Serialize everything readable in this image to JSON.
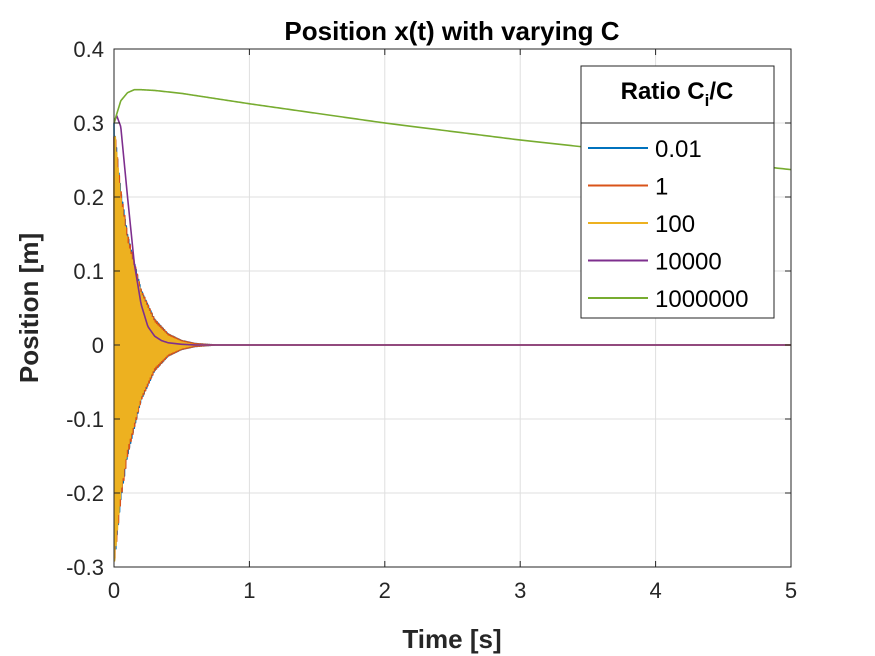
{
  "chart_data": {
    "type": "line",
    "title": "Position x(t) with varying C",
    "xlabel": "Time [s]",
    "ylabel": "Position [m]",
    "xlim": [
      0,
      5
    ],
    "ylim": [
      -0.3,
      0.4
    ],
    "x_ticks": [
      "0",
      "1",
      "2",
      "3",
      "4",
      "5"
    ],
    "y_ticks": [
      "-0.3",
      "-0.2",
      "-0.1",
      "0",
      "0.1",
      "0.2",
      "0.3",
      "0.4"
    ],
    "grid": true,
    "legend": {
      "title_main": "Ratio C",
      "title_sub": "i",
      "title_end": "/C",
      "placement": "top-right"
    },
    "series": [
      {
        "name": "0.01",
        "color": "#0072BD",
        "behavior": "fast oscillation decaying to 0 by ~0.4 s",
        "envelope": [
          [
            0,
            0.3
          ],
          [
            0.05,
            0.21
          ],
          [
            0.1,
            0.15
          ],
          [
            0.2,
            0.075
          ],
          [
            0.3,
            0.035
          ],
          [
            0.4,
            0.015
          ],
          [
            0.5,
            0.006
          ],
          [
            0.6,
            0.002
          ],
          [
            0.75,
            0
          ]
        ],
        "values_after": [
          [
            0.75,
            0
          ],
          [
            5,
            0
          ]
        ]
      },
      {
        "name": "1",
        "color": "#D95319",
        "behavior": "fast oscillation decaying to 0 by ~0.7 s",
        "envelope": [
          [
            0,
            0.3
          ],
          [
            0.05,
            0.21
          ],
          [
            0.1,
            0.15
          ],
          [
            0.2,
            0.075
          ],
          [
            0.3,
            0.035
          ],
          [
            0.4,
            0.015
          ],
          [
            0.5,
            0.006
          ],
          [
            0.6,
            0.002
          ],
          [
            0.75,
            0
          ]
        ],
        "values_after": [
          [
            0.75,
            0
          ],
          [
            5,
            0
          ]
        ]
      },
      {
        "name": "100",
        "color": "#EDB120",
        "behavior": "fast oscillation decaying to 0 by ~0.5 s",
        "envelope": [
          [
            0,
            0.3
          ],
          [
            0.05,
            0.2
          ],
          [
            0.1,
            0.14
          ],
          [
            0.2,
            0.07
          ],
          [
            0.3,
            0.03
          ],
          [
            0.4,
            0.012
          ],
          [
            0.5,
            0.004
          ],
          [
            0.6,
            0
          ]
        ],
        "values_after": [
          [
            0.6,
            0
          ],
          [
            5,
            0
          ]
        ]
      },
      {
        "name": "10000",
        "color": "#7E2F8E",
        "x": [
          0,
          0.02,
          0.05,
          0.1,
          0.15,
          0.2,
          0.25,
          0.3,
          0.35,
          0.4,
          0.5,
          0.6,
          0.8,
          1.0,
          5.0
        ],
        "y": [
          0.3,
          0.31,
          0.295,
          0.2,
          0.11,
          0.055,
          0.025,
          0.012,
          0.006,
          0.003,
          0.001,
          0.0,
          0.0,
          0.0,
          0.0
        ]
      },
      {
        "name": "1000000",
        "color": "#77AC30",
        "x": [
          0,
          0.05,
          0.1,
          0.15,
          0.2,
          0.3,
          0.5,
          1.0,
          2.0,
          3.0,
          4.0,
          5.0
        ],
        "y": [
          0.3,
          0.33,
          0.341,
          0.345,
          0.345,
          0.344,
          0.34,
          0.326,
          0.3,
          0.277,
          0.257,
          0.237
        ]
      }
    ]
  }
}
